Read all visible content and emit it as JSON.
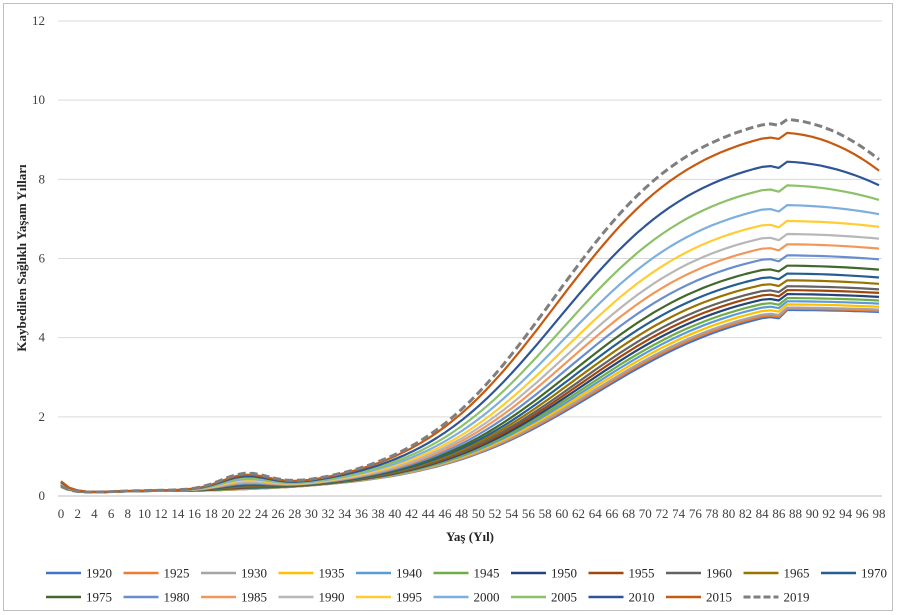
{
  "chart_data": {
    "type": "line",
    "title": "",
    "xlabel": "Yaş (Yıl)",
    "ylabel": "Kaybedilen Sağlıklı Yaşam Yılları",
    "ylim": [
      0,
      12
    ],
    "yticks": [
      0,
      2,
      4,
      6,
      8,
      10,
      12
    ],
    "xlim": [
      0,
      98
    ],
    "xticks": [
      0,
      2,
      4,
      6,
      8,
      10,
      12,
      14,
      16,
      18,
      20,
      22,
      24,
      26,
      28,
      30,
      32,
      34,
      36,
      38,
      40,
      42,
      44,
      46,
      48,
      50,
      52,
      54,
      56,
      58,
      60,
      62,
      64,
      66,
      68,
      70,
      72,
      74,
      76,
      78,
      80,
      82,
      84,
      86,
      88,
      90,
      92,
      94,
      96,
      98
    ],
    "grid": "horizontal",
    "legend_position": "bottom",
    "series": [
      {
        "name": "1920",
        "color": "#4472C4",
        "peak": 4.7,
        "end": 4.65,
        "inf": 0.32
      },
      {
        "name": "1925",
        "color": "#ED7D31",
        "peak": 4.73,
        "end": 4.68,
        "inf": 0.3
      },
      {
        "name": "1930",
        "color": "#A5A5A5",
        "peak": 4.76,
        "end": 4.71,
        "inf": 0.3
      },
      {
        "name": "1935",
        "color": "#FFC000",
        "peak": 4.84,
        "end": 4.78,
        "inf": 0.3
      },
      {
        "name": "1940",
        "color": "#5B9BD5",
        "peak": 4.92,
        "end": 4.86,
        "inf": 0.31
      },
      {
        "name": "1945",
        "color": "#70AD47",
        "peak": 5.0,
        "end": 4.94,
        "inf": 0.31
      },
      {
        "name": "1950",
        "color": "#264478",
        "peak": 5.1,
        "end": 5.03,
        "inf": 0.32
      },
      {
        "name": "1955",
        "color": "#9E480E",
        "peak": 5.2,
        "end": 5.13,
        "inf": 0.32
      },
      {
        "name": "1960",
        "color": "#636363",
        "peak": 5.3,
        "end": 5.22,
        "inf": 0.33
      },
      {
        "name": "1965",
        "color": "#997300",
        "peak": 5.45,
        "end": 5.36,
        "inf": 0.33
      },
      {
        "name": "1970",
        "color": "#255E91",
        "peak": 5.62,
        "end": 5.52,
        "inf": 0.34
      },
      {
        "name": "1975",
        "color": "#43682B",
        "peak": 5.82,
        "end": 5.72,
        "inf": 0.34
      },
      {
        "name": "1980",
        "color": "#698ED0",
        "peak": 6.08,
        "end": 5.98,
        "inf": 0.35
      },
      {
        "name": "1985",
        "color": "#F1975A",
        "peak": 6.36,
        "end": 6.25,
        "inf": 0.35
      },
      {
        "name": "1990",
        "color": "#B7B7B7",
        "peak": 6.62,
        "end": 6.5,
        "inf": 0.36
      },
      {
        "name": "1995",
        "color": "#FFCD33",
        "peak": 6.95,
        "end": 6.8,
        "inf": 0.36
      },
      {
        "name": "2000",
        "color": "#7CAFDD",
        "peak": 7.35,
        "end": 7.12,
        "inf": 0.37
      },
      {
        "name": "2005",
        "color": "#8CC168",
        "peak": 7.85,
        "end": 7.48,
        "inf": 0.38
      },
      {
        "name": "2010",
        "color": "#2F5597",
        "peak": 8.45,
        "end": 7.85,
        "inf": 0.39
      },
      {
        "name": "2015",
        "color": "#C55A11",
        "peak": 9.18,
        "end": 8.22,
        "inf": 0.41
      },
      {
        "name": "2019",
        "color": "#7F7F7F",
        "dashed": true,
        "peak": 9.52,
        "end": 8.5,
        "inf": 0.28
      }
    ]
  }
}
